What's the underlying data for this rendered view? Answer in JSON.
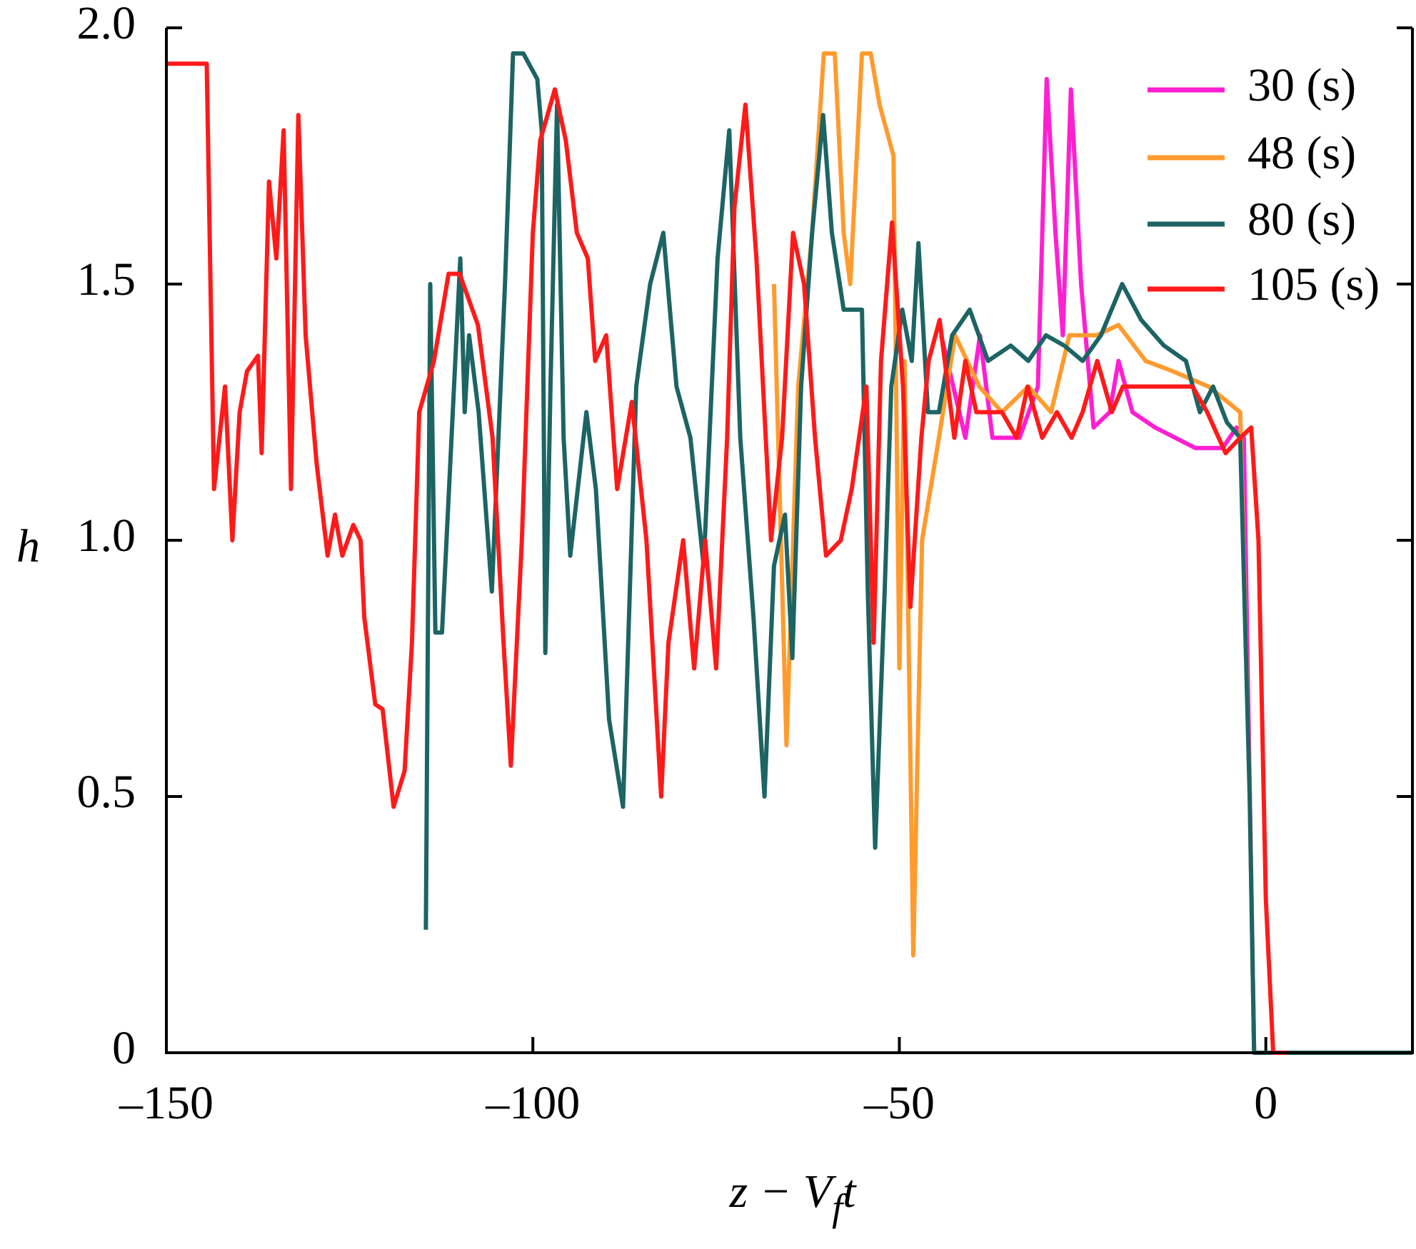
{
  "chart_data": {
    "type": "line",
    "xlabel": [
      "z − V",
      "f",
      "t"
    ],
    "ylabel": "h",
    "xlim": [
      -150,
      20
    ],
    "ylim": [
      0,
      2
    ],
    "xticks": [
      {
        "value": -150,
        "label": "–150"
      },
      {
        "value": -100,
        "label": "–100"
      },
      {
        "value": -50,
        "label": "–50"
      },
      0
    ],
    "yticks": [
      0,
      0.5,
      {
        "value": 1,
        "label": "1.0"
      },
      1.5,
      {
        "value": 2,
        "label": "2.0"
      }
    ],
    "grid": false,
    "legend": "upper right",
    "series": [
      {
        "name": "30 (s)",
        "color": "#ff1fd2",
        "x": [
          -44.3,
          -41,
          -39,
          -37.3,
          -33.6,
          -31.1,
          -29.9,
          -28.7,
          -27.7,
          -26.6,
          -25.2,
          -23.5,
          -21.3,
          -20.1,
          -18.2,
          -15.1,
          -9.6,
          -5.9,
          -4,
          -3,
          -1.6,
          0
        ],
        "values": [
          1.4,
          1.2,
          1.4,
          1.2,
          1.2,
          1.3,
          1.9,
          1.6,
          1.4,
          1.88,
          1.5,
          1.22,
          1.25,
          1.35,
          1.25,
          1.22,
          1.18,
          1.18,
          1.22,
          1.2,
          0,
          0
        ]
      },
      {
        "name": "48 (s)",
        "color": "#ff9b2e",
        "x": [
          -67.1,
          -65.4,
          -63.8,
          -61.9,
          -60.3,
          -58.8,
          -57.6,
          -56.7,
          -55.1,
          -53.9,
          -52.7,
          -50.8,
          -50,
          -49.3,
          -48.1,
          -46.9,
          -44.6,
          -42.4,
          -39.1,
          -36,
          -32.4,
          -29.3,
          -26.8,
          -23.1,
          -20.1,
          -16.4,
          -12.7,
          -7.8,
          -3.5,
          -2.2,
          -1.6,
          -1
        ],
        "values": [
          1.5,
          0.6,
          1.3,
          1.6,
          1.95,
          1.95,
          1.6,
          1.5,
          1.95,
          1.95,
          1.85,
          1.75,
          0.75,
          1.35,
          0.19,
          1.0,
          1.2,
          1.4,
          1.3,
          1.25,
          1.3,
          1.25,
          1.4,
          1.4,
          1.42,
          1.35,
          1.33,
          1.3,
          1.25,
          0.5,
          0,
          0
        ]
      },
      {
        "name": "80 (s)",
        "color": "#1d6464",
        "x": [
          -114.6,
          -114,
          -113.3,
          -112.4,
          -109.9,
          -109.3,
          -108.7,
          -107.4,
          -105.6,
          -103.8,
          -102.7,
          -101.3,
          -99.4,
          -98.8,
          -98.3,
          -97.6,
          -96.7,
          -95.8,
          -94.9,
          -92.7,
          -91.4,
          -89.6,
          -87.7,
          -85.9,
          -84,
          -82.2,
          -80.4,
          -78.5,
          -76.7,
          -74.8,
          -73.2,
          -71.7,
          -69.9,
          -68.4,
          -67.1,
          -65.6,
          -64.6,
          -63.4,
          -61.9,
          -60.4,
          -59.2,
          -57.6,
          -55.1,
          -54.3,
          -53.3,
          -52,
          -51.1,
          -49.6,
          -48.3,
          -47.4,
          -46.1,
          -44.6,
          -42.8,
          -40.4,
          -37.9,
          -34.8,
          -32.4,
          -30,
          -27.5,
          -25,
          -22.5,
          -19.6,
          -17,
          -13.9,
          -10.9,
          -9,
          -7.2,
          -5.3,
          -3.5,
          -2.2,
          -1.6,
          20
        ],
        "values": [
          0.24,
          1.5,
          0.82,
          0.82,
          1.55,
          1.25,
          1.4,
          1.25,
          0.9,
          1.5,
          1.95,
          1.95,
          1.9,
          1.8,
          0.78,
          1.3,
          1.85,
          1.2,
          0.97,
          1.25,
          1.1,
          0.65,
          0.48,
          1.3,
          1.5,
          1.6,
          1.3,
          1.2,
          0.95,
          1.55,
          1.8,
          1.2,
          0.85,
          0.5,
          0.95,
          1.05,
          0.77,
          1.3,
          1.6,
          1.83,
          1.6,
          1.45,
          1.45,
          0.9,
          0.4,
          0.9,
          1.3,
          1.45,
          1.35,
          1.58,
          1.25,
          1.25,
          1.4,
          1.45,
          1.35,
          1.38,
          1.35,
          1.4,
          1.38,
          1.35,
          1.4,
          1.5,
          1.43,
          1.38,
          1.35,
          1.25,
          1.3,
          1.23,
          1.2,
          0.5,
          0,
          0
        ]
      },
      {
        "name": "105 (s)",
        "color": "#ff1a1a",
        "x": [
          -150,
          -144.5,
          -143.5,
          -142,
          -141,
          -140,
          -139,
          -137.5,
          -137,
          -136,
          -135,
          -134,
          -133,
          -132,
          -131,
          -129.5,
          -128,
          -127,
          -126,
          -124.5,
          -123.5,
          -123,
          -121.5,
          -120.5,
          -119,
          -117.5,
          -116.5,
          -115.5,
          -113.5,
          -111.5,
          -110,
          -107.5,
          -105.5,
          -104,
          -103,
          -101.5,
          -100,
          -99,
          -97,
          -95.5,
          -94,
          -92.5,
          -91.5,
          -90,
          -88.5,
          -86.5,
          -84.5,
          -82.5,
          -81.5,
          -79.5,
          -78,
          -76.5,
          -75,
          -73.5,
          -72.5,
          -71,
          -69.5,
          -67.5,
          -66,
          -64.5,
          -63,
          -61.5,
          -60,
          -58,
          -56.5,
          -54.5,
          -53.5,
          -52.5,
          -51,
          -49.5,
          -48.5,
          -47,
          -46,
          -44.5,
          -42.5,
          -41,
          -39.5,
          -38,
          -36,
          -34,
          -32.5,
          -30.5,
          -28.5,
          -26.5,
          -25,
          -23,
          -21,
          -19.5,
          -17.5,
          -15,
          -12.5,
          -10,
          -8,
          -5.5,
          -3.5,
          -2,
          -1,
          0,
          1,
          3
        ],
        "values": [
          1.93,
          1.93,
          1.1,
          1.3,
          1.0,
          1.25,
          1.33,
          1.36,
          1.17,
          1.7,
          1.55,
          1.8,
          1.1,
          1.83,
          1.4,
          1.15,
          0.97,
          1.05,
          0.97,
          1.03,
          1.0,
          0.85,
          0.68,
          0.67,
          0.48,
          0.55,
          0.8,
          1.25,
          1.35,
          1.52,
          1.52,
          1.42,
          1.2,
          0.8,
          0.56,
          1.0,
          1.6,
          1.78,
          1.88,
          1.78,
          1.6,
          1.55,
          1.35,
          1.4,
          1.1,
          1.27,
          1.0,
          0.5,
          0.8,
          1.0,
          0.75,
          1.0,
          0.75,
          1.2,
          1.65,
          1.85,
          1.55,
          1.0,
          1.2,
          1.6,
          1.5,
          1.2,
          0.97,
          1.0,
          1.1,
          1.3,
          0.8,
          1.35,
          1.62,
          1.3,
          0.87,
          1.2,
          1.35,
          1.43,
          1.2,
          1.35,
          1.25,
          1.25,
          1.25,
          1.2,
          1.3,
          1.2,
          1.25,
          1.2,
          1.25,
          1.35,
          1.25,
          1.3,
          1.3,
          1.3,
          1.3,
          1.3,
          1.25,
          1.17,
          1.2,
          1.22,
          1.0,
          0.3,
          0,
          0
        ]
      }
    ]
  }
}
